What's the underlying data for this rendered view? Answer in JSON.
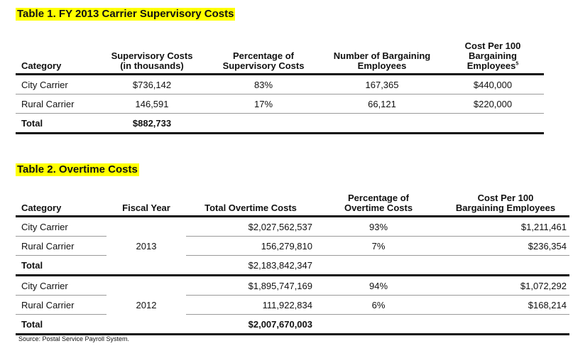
{
  "table1": {
    "title": "Table 1. FY 2013 Carrier Supervisory Costs",
    "headers": {
      "category": "Category",
      "supervisory_costs": [
        "Supervisory Costs",
        "(in thousands)"
      ],
      "percentage": [
        "Percentage of",
        "Supervisory Costs"
      ],
      "bargaining_employees": [
        "Number of Bargaining",
        "Employees"
      ],
      "cost_per_100": [
        "Cost Per 100",
        "Bargaining",
        "Employees"
      ],
      "cost_per_100_footnote": "5"
    },
    "rows": [
      {
        "category": "City Carrier",
        "costs": "$736,142",
        "percentage": "83%",
        "employees": "167,365",
        "cost_per_100": "$440,000"
      },
      {
        "category": "Rural Carrier",
        "costs": "146,591",
        "percentage": "17%",
        "employees": "66,121",
        "cost_per_100": "$220,000"
      }
    ],
    "total": {
      "category": "Total",
      "costs": "$882,733"
    }
  },
  "table2": {
    "title": "Table 2. Overtime Costs",
    "headers": {
      "category": "Category",
      "fiscal_year": "Fiscal Year",
      "total_overtime": "Total Overtime Costs",
      "percentage": [
        "Percentage of",
        "Overtime Costs"
      ],
      "cost_per_100": [
        "Cost Per 100",
        "Bargaining Employees"
      ]
    },
    "groups": [
      {
        "fiscal_year": "2013",
        "rows": [
          {
            "category": "City Carrier",
            "costs": "$2,027,562,537",
            "percentage": "93%",
            "cost_per_100": "$1,211,461"
          },
          {
            "category": "Rural Carrier",
            "costs": "156,279,810",
            "percentage": "7%",
            "cost_per_100": "$236,354"
          }
        ],
        "total": {
          "category": "Total",
          "costs": "$2,183,842,347"
        }
      },
      {
        "fiscal_year": "2012",
        "rows": [
          {
            "category": "City Carrier",
            "costs": "$1,895,747,169",
            "percentage": "94%",
            "cost_per_100": "$1,072,292"
          },
          {
            "category": "Rural Carrier",
            "costs": "111,922,834",
            "percentage": "6%",
            "cost_per_100": "$168,214"
          }
        ],
        "total": {
          "category": "Total",
          "costs": "$2,007,670,003"
        }
      }
    ]
  },
  "source": "Source: Postal Service Payroll System."
}
